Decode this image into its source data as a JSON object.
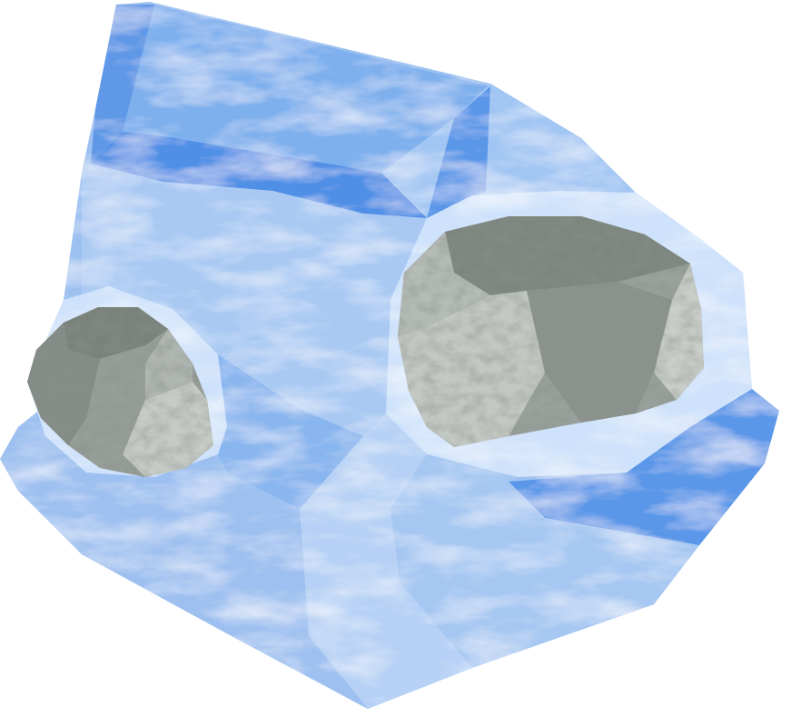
{
  "object": {
    "name": "ice-boulder-with-embedded-rocks",
    "colors": {
      "ice_light": "#d8e8fb",
      "ice_mid": "#a9c9f3",
      "ice_base": "#8fb8ef",
      "ice_deep": "#4f8fe6",
      "ice_rim": "#c7defa",
      "rock_light": "#c9cec9",
      "rock_mid": "#9aa19c",
      "rock_dark": "#6e7670"
    }
  }
}
